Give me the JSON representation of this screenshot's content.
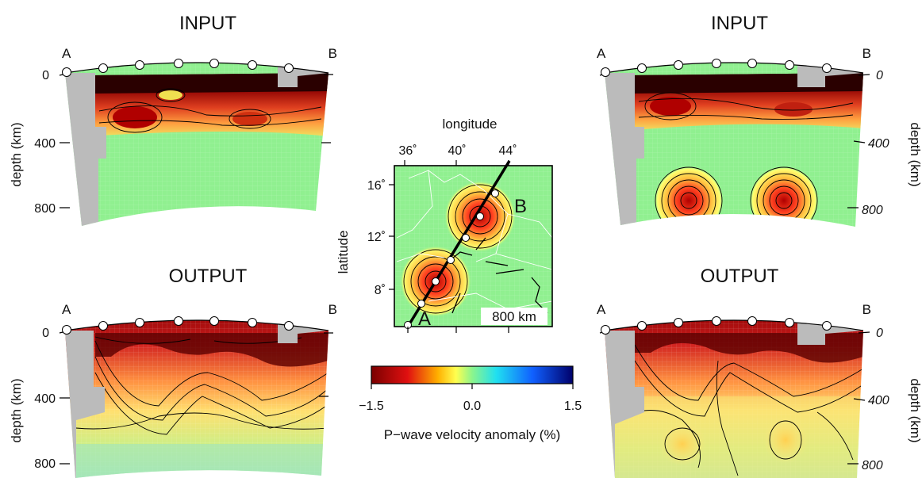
{
  "panels": [
    {
      "id": "p1",
      "title": "INPUT",
      "ylabel": "depth (km)",
      "profile_start": "A",
      "profile_end": "B",
      "depth_ticks": [
        "0",
        "400",
        "800"
      ]
    },
    {
      "id": "p2",
      "title": "INPUT",
      "ylabel": "depth (km)",
      "profile_start": "A",
      "profile_end": "B",
      "depth_ticks": [
        "0",
        "400",
        "800"
      ]
    },
    {
      "id": "p3",
      "title": "OUTPUT",
      "ylabel": "depth (km)",
      "profile_start": "A",
      "profile_end": "B",
      "depth_ticks": [
        "0",
        "400",
        "800"
      ]
    },
    {
      "id": "p4",
      "title": "OUTPUT",
      "ylabel": "depth (km)",
      "profile_start": "A",
      "profile_end": "B",
      "depth_ticks": [
        "0",
        "400",
        "800"
      ]
    }
  ],
  "map": {
    "xlabel": "longitude",
    "ylabel": "latitude",
    "lon_ticks": [
      "36˚",
      "40˚",
      "44˚"
    ],
    "lat_ticks": [
      "16˚",
      "12˚",
      "8˚"
    ],
    "point_a": "A",
    "point_b": "B",
    "scale_label": "800 km"
  },
  "colorbar": {
    "ticks": [
      "−1.5",
      "0.0",
      "1.5"
    ],
    "label": "P−wave velocity anomaly (%)"
  }
}
